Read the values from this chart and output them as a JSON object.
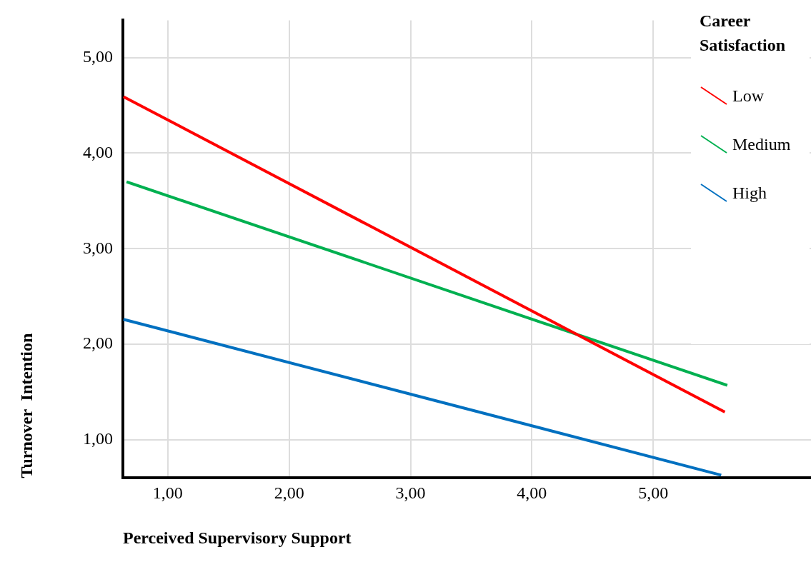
{
  "chart_data": {
    "type": "line",
    "xlabel": "Perceived Supervisory Support",
    "ylabel": "Turnover  Intention",
    "legend_title": "Career Satisfaction",
    "legend": "top right",
    "grid": true,
    "marker": "none",
    "line_style": "solid",
    "xlim": [
      0.63,
      6.3
    ],
    "xticks": [
      {
        "value": 1,
        "label": "1,00"
      },
      {
        "value": 2,
        "label": "2,00"
      },
      {
        "value": 3,
        "label": "3,00"
      },
      {
        "value": 4,
        "label": "4,00"
      },
      {
        "value": 5,
        "label": "5,00"
      }
    ],
    "ylim": [
      0.6,
      5.39
    ],
    "yticks": [
      {
        "value": 1,
        "label": "1,00"
      },
      {
        "value": 2,
        "label": "2,00"
      },
      {
        "value": 3,
        "label": "3,00"
      },
      {
        "value": 4,
        "label": "4,00"
      },
      {
        "value": 5,
        "label": "5,00"
      }
    ],
    "series": [
      {
        "name": "Low",
        "color": "#ff0000",
        "x": [
          0.635,
          5.59
        ],
        "values": [
          4.59,
          1.29
        ]
      },
      {
        "name": "Medium",
        "color": "#00b050",
        "x": [
          0.66,
          5.61
        ],
        "values": [
          3.7,
          1.57
        ]
      },
      {
        "name": "High",
        "color": "#0070c0",
        "x": [
          0.635,
          5.56
        ],
        "values": [
          2.26,
          0.63
        ]
      }
    ]
  }
}
